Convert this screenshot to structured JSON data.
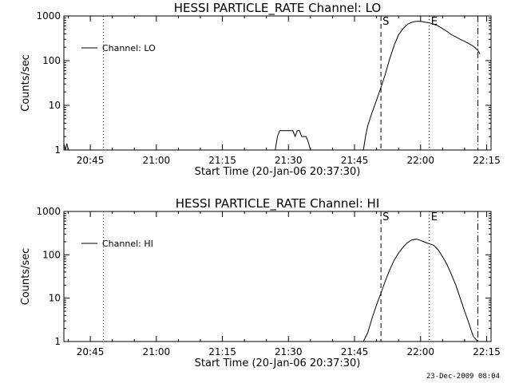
{
  "chart_data": [
    {
      "type": "line",
      "title": "HESSI PARTICLE_RATE Channel: LO",
      "xlabel": "Start Time (20-Jan-06 20:37:30)",
      "ylabel": "Counts/sec",
      "y_scale": "log",
      "ylim": [
        1,
        1000
      ],
      "xlim": [
        "20:39",
        "22:16"
      ],
      "x_ticks": [
        "20:45",
        "21:00",
        "21:15",
        "21:30",
        "21:45",
        "22:00",
        "22:15"
      ],
      "y_ticks": [
        "1",
        "10",
        "100",
        "1000"
      ],
      "legend": "top-left",
      "series": [
        {
          "name": "Channel: LO",
          "x": [
            "20:39:00",
            "20:39:20",
            "20:39:40",
            "20:40:00",
            "21:27:00",
            "21:27:30",
            "21:28:00",
            "21:31:00",
            "21:31:30",
            "21:32:00",
            "21:32:30",
            "21:33:00",
            "21:34:00",
            "21:34:30",
            "21:35:00",
            "21:47:00",
            "21:47:30",
            "21:48:00",
            "21:49:00",
            "21:50:00",
            "21:51:00",
            "21:52:00",
            "21:53:00",
            "21:54:00",
            "21:55:00",
            "21:56:00",
            "21:57:00",
            "21:58:00",
            "21:59:00",
            "22:00:00",
            "22:01:00",
            "22:02:00",
            "22:03:00",
            "22:04:00",
            "22:05:00",
            "22:06:00",
            "22:07:00",
            "22:08:00",
            "22:09:00",
            "22:10:00",
            "22:11:00",
            "22:12:00",
            "22:13:00",
            "22:13:30"
          ],
          "values": [
            1.4,
            1.0,
            1.4,
            1.0,
            1.0,
            2.0,
            2.7,
            2.7,
            2.0,
            2.7,
            2.7,
            2.0,
            2.0,
            1.5,
            1.0,
            1.0,
            2.0,
            3.5,
            7,
            13,
            25,
            50,
            110,
            220,
            380,
            520,
            650,
            720,
            760,
            760,
            730,
            700,
            650,
            600,
            520,
            450,
            380,
            340,
            300,
            270,
            240,
            210,
            170,
            140
          ]
        }
      ],
      "markers": [
        {
          "label": "",
          "x": "20:48",
          "style": "dotted"
        },
        {
          "label": "S",
          "x": "21:51",
          "style": "dashed"
        },
        {
          "label": "E",
          "x": "22:02",
          "style": "dotted"
        },
        {
          "label": "",
          "x": "22:13",
          "style": "dash-dot"
        }
      ]
    },
    {
      "type": "line",
      "title": "HESSI PARTICLE_RATE Channel: HI",
      "xlabel": "Start Time (20-Jan-06 20:37:30)",
      "ylabel": "Counts/sec",
      "y_scale": "log",
      "ylim": [
        1,
        1000
      ],
      "xlim": [
        "20:39",
        "22:16"
      ],
      "x_ticks": [
        "20:45",
        "21:00",
        "21:15",
        "21:30",
        "21:45",
        "22:00",
        "22:15"
      ],
      "y_ticks": [
        "1",
        "10",
        "100",
        "1000"
      ],
      "legend": "top-left",
      "series": [
        {
          "name": "Channel: HI",
          "x": [
            "21:47:00",
            "21:48:00",
            "21:49:00",
            "21:50:00",
            "21:51:00",
            "21:52:00",
            "21:53:00",
            "21:54:00",
            "21:55:00",
            "21:56:00",
            "21:57:00",
            "21:58:00",
            "21:59:00",
            "22:00:00",
            "22:01:00",
            "22:02:00",
            "22:03:00",
            "22:04:00",
            "22:05:00",
            "22:06:00",
            "22:07:00",
            "22:08:00",
            "22:09:00",
            "22:10:00",
            "22:11:00",
            "22:11:30",
            "22:12:00",
            "22:13:00"
          ],
          "values": [
            1.0,
            1.6,
            3.5,
            7,
            13,
            25,
            45,
            75,
            110,
            150,
            190,
            220,
            230,
            215,
            195,
            180,
            165,
            130,
            90,
            60,
            35,
            20,
            10,
            5,
            2.6,
            1.8,
            1.3,
            1.0
          ]
        }
      ],
      "markers": [
        {
          "label": "",
          "x": "20:48",
          "style": "dotted"
        },
        {
          "label": "S",
          "x": "21:51",
          "style": "dashed"
        },
        {
          "label": "E",
          "x": "22:02",
          "style": "dotted"
        },
        {
          "label": "",
          "x": "22:13",
          "style": "dash-dot"
        }
      ]
    }
  ],
  "footer": {
    "datestamp": "23-Dec-2009 08:04"
  }
}
